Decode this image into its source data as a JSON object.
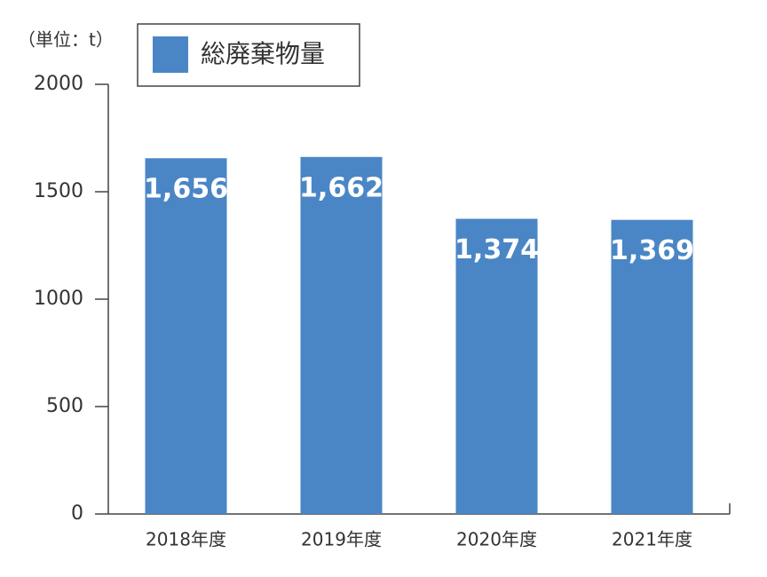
{
  "chart_data": {
    "type": "bar",
    "unit_label": "（単位：t）",
    "categories": [
      "2018年度",
      "2019年度",
      "2020年度",
      "2021年度"
    ],
    "series": [
      {
        "name": "総廃棄物量",
        "color": "#4a86c6",
        "values": [
          1656,
          1662,
          1374,
          1369
        ],
        "value_labels": [
          "1,656",
          "1,662",
          "1,374",
          "1,369"
        ]
      }
    ],
    "ylim": [
      0,
      2000
    ],
    "yticks": [
      0,
      500,
      1000,
      1500,
      2000
    ],
    "grid": false
  }
}
